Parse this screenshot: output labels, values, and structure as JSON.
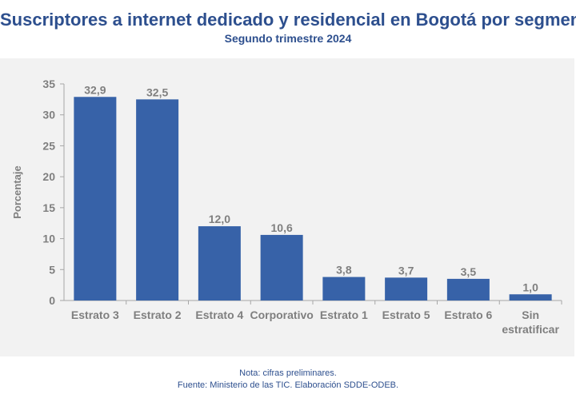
{
  "header": {
    "title": "Suscriptores a internet dedicado y residencial en Bogotá por segmento",
    "subtitle": "Segundo trimestre 2024"
  },
  "footer": {
    "note": "Nota: cifras preliminares.",
    "source": "Fuente: Ministerio de las TIC. Elaboración SDDE-ODEB."
  },
  "chart_data": {
    "type": "bar",
    "title": "Suscriptores a internet dedicado y residencial en Bogotá por segmento",
    "subtitle": "Segundo trimestre 2024",
    "xlabel": "",
    "ylabel": "Porcentaje",
    "categories": [
      "Estrato 3",
      "Estrato 2",
      "Estrato 4",
      "Corporativo",
      "Estrato 1",
      "Estrato 5",
      "Estrato 6",
      "Sin estratificar"
    ],
    "category_lines": [
      [
        "Estrato 3"
      ],
      [
        "Estrato 2"
      ],
      [
        "Estrato 4"
      ],
      [
        "Corporativo"
      ],
      [
        "Estrato 1"
      ],
      [
        "Estrato 5"
      ],
      [
        "Estrato 6"
      ],
      [
        "Sin",
        "estratificar"
      ]
    ],
    "values": [
      32.9,
      32.5,
      12.0,
      10.6,
      3.8,
      3.7,
      3.5,
      1.0
    ],
    "data_labels": [
      "32,9",
      "32,5",
      "12,0",
      "10,6",
      "3,8",
      "3,7",
      "3,5",
      "1,0"
    ],
    "ylim": [
      0,
      35
    ],
    "yticks": [
      0,
      5,
      10,
      15,
      20,
      25,
      30,
      35
    ],
    "grid": false,
    "legend": "none",
    "colors": {
      "bar": "#3762a8",
      "label": "#7f7f7f",
      "axis": "#a6a6a6",
      "title": "#2d4f8e",
      "panel": "#f2f2f2"
    }
  }
}
